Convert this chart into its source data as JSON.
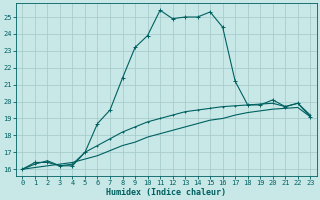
{
  "xlabel": "Humidex (Indice chaleur)",
  "background_color": "#c8e8e8",
  "grid_color": "#a8cccc",
  "line_color": "#006060",
  "xlim": [
    -0.5,
    23.5
  ],
  "ylim": [
    15.6,
    25.8
  ],
  "yticks": [
    16,
    17,
    18,
    19,
    20,
    21,
    22,
    23,
    24,
    25
  ],
  "xticks": [
    0,
    1,
    2,
    3,
    4,
    5,
    6,
    7,
    8,
    9,
    10,
    11,
    12,
    13,
    14,
    15,
    16,
    17,
    18,
    19,
    20,
    21,
    22,
    23
  ],
  "series1_x": [
    0,
    1,
    2,
    3,
    4,
    5,
    6,
    7,
    8,
    9,
    10,
    11,
    12,
    13,
    14,
    15,
    16,
    17,
    18,
    19,
    20,
    21,
    22,
    23
  ],
  "series1_y": [
    16.0,
    16.4,
    16.4,
    16.2,
    16.2,
    17.0,
    18.7,
    19.5,
    21.4,
    23.2,
    23.9,
    25.4,
    24.9,
    25.0,
    25.0,
    25.3,
    24.4,
    21.2,
    19.8,
    19.8,
    20.1,
    19.7,
    19.9,
    19.1
  ],
  "series2_x": [
    0,
    1,
    2,
    3,
    4,
    5,
    6,
    7,
    8,
    9,
    10,
    11,
    12,
    13,
    14,
    15,
    16,
    17,
    18,
    19,
    20,
    21,
    22,
    23
  ],
  "series2_y": [
    16.0,
    16.3,
    16.5,
    16.2,
    16.3,
    17.0,
    17.4,
    17.8,
    18.2,
    18.5,
    18.8,
    19.0,
    19.2,
    19.4,
    19.5,
    19.6,
    19.7,
    19.75,
    19.8,
    19.85,
    19.9,
    19.7,
    19.9,
    19.2
  ],
  "series3_x": [
    0,
    1,
    2,
    3,
    4,
    5,
    6,
    7,
    8,
    9,
    10,
    11,
    12,
    13,
    14,
    15,
    16,
    17,
    18,
    19,
    20,
    21,
    22,
    23
  ],
  "series3_y": [
    16.0,
    16.1,
    16.2,
    16.3,
    16.4,
    16.6,
    16.8,
    17.1,
    17.4,
    17.6,
    17.9,
    18.1,
    18.3,
    18.5,
    18.7,
    18.9,
    19.0,
    19.2,
    19.35,
    19.45,
    19.55,
    19.6,
    19.65,
    19.1
  ]
}
